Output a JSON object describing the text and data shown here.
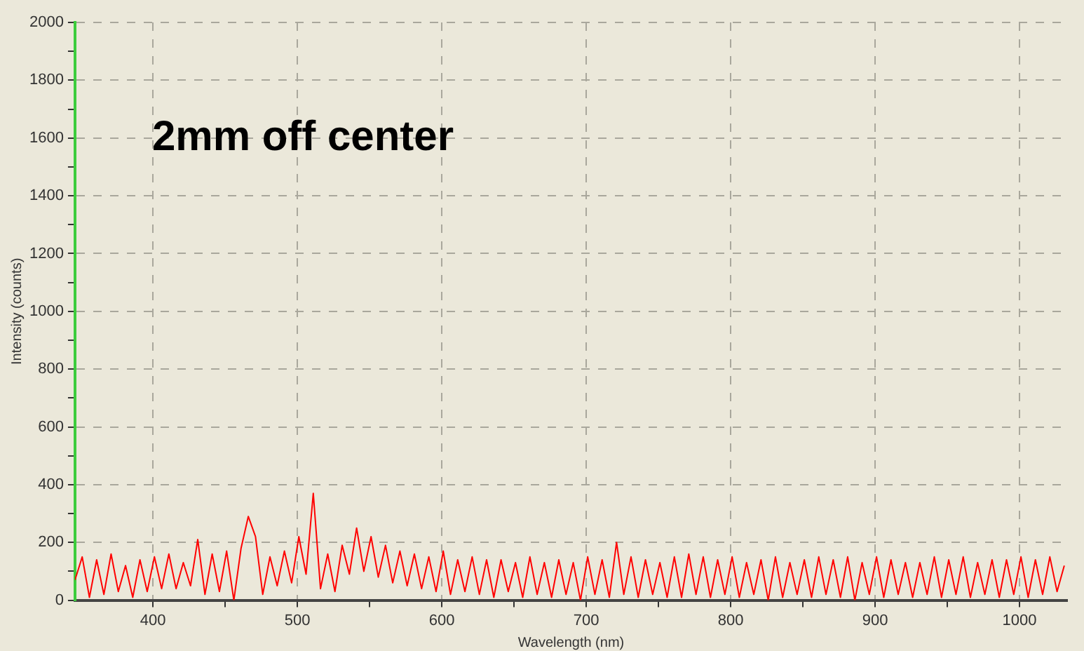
{
  "chart_data": {
    "type": "line",
    "xlabel": "Wavelength (nm)",
    "ylabel": "Intensity (counts)",
    "annotations": [
      "2mm off center"
    ],
    "xlim": [
      346,
      1033
    ],
    "ylim": [
      0,
      2000
    ],
    "xticks": [
      400,
      {
        "value": 450,
        "label": null
      },
      500,
      {
        "value": 550,
        "label": null
      },
      600,
      {
        "value": 650,
        "label": null
      },
      700,
      {
        "value": 750,
        "label": null
      },
      800,
      {
        "value": 850,
        "label": null
      },
      900,
      {
        "value": 950,
        "label": null
      },
      1000
    ],
    "yticks": [
      0,
      {
        "value": 100,
        "label": null
      },
      200,
      {
        "value": 300,
        "label": null
      },
      400,
      {
        "value": 500,
        "label": null
      },
      600,
      {
        "value": 700,
        "label": null
      },
      800,
      {
        "value": 900,
        "label": null
      },
      1000,
      {
        "value": 1100,
        "label": null
      },
      1200,
      {
        "value": 1300,
        "label": null
      },
      1400,
      {
        "value": 1500,
        "label": null
      },
      1600,
      {
        "value": 1700,
        "label": null
      },
      1800,
      {
        "value": 1900,
        "label": null
      },
      2000
    ],
    "grid": true,
    "marker": "none",
    "line_style": "solid",
    "legend": false,
    "series": [
      {
        "color": "#ff0000",
        "x": [
          346,
          351,
          356,
          361,
          366,
          371,
          376,
          381,
          386,
          391,
          396,
          401,
          406,
          411,
          416,
          421,
          426,
          431,
          436,
          441,
          446,
          451,
          456,
          461,
          466,
          471,
          476,
          481,
          486,
          491,
          496,
          501,
          506,
          511,
          516,
          521,
          526,
          531,
          536,
          541,
          546,
          551,
          556,
          561,
          566,
          571,
          576,
          581,
          586,
          591,
          596,
          601,
          606,
          611,
          616,
          621,
          626,
          631,
          636,
          641,
          646,
          651,
          656,
          661,
          666,
          671,
          676,
          681,
          686,
          691,
          696,
          701,
          706,
          711,
          716,
          721,
          726,
          731,
          736,
          741,
          746,
          751,
          756,
          761,
          766,
          771,
          776,
          781,
          786,
          791,
          796,
          801,
          806,
          811,
          816,
          821,
          826,
          831,
          836,
          841,
          846,
          851,
          856,
          861,
          866,
          871,
          876,
          881,
          886,
          891,
          896,
          901,
          906,
          911,
          916,
          921,
          926,
          931,
          936,
          941,
          946,
          951,
          956,
          961,
          966,
          971,
          976,
          981,
          986,
          991,
          996,
          1001,
          1006,
          1011,
          1016,
          1021,
          1026,
          1031
        ],
        "values": [
          70,
          150,
          10,
          140,
          20,
          160,
          30,
          120,
          10,
          140,
          30,
          150,
          40,
          160,
          40,
          130,
          50,
          210,
          20,
          160,
          30,
          170,
          0,
          180,
          290,
          220,
          20,
          150,
          50,
          170,
          60,
          220,
          90,
          370,
          40,
          160,
          30,
          190,
          90,
          250,
          100,
          220,
          80,
          190,
          60,
          170,
          50,
          160,
          40,
          150,
          30,
          170,
          20,
          140,
          30,
          150,
          20,
          140,
          10,
          140,
          30,
          130,
          10,
          150,
          20,
          130,
          10,
          140,
          20,
          130,
          0,
          150,
          20,
          140,
          10,
          200,
          20,
          150,
          10,
          140,
          20,
          130,
          10,
          150,
          10,
          160,
          20,
          150,
          10,
          140,
          20,
          150,
          10,
          130,
          20,
          140,
          0,
          150,
          10,
          130,
          20,
          140,
          10,
          150,
          20,
          140,
          10,
          150,
          0,
          130,
          20,
          150,
          10,
          140,
          20,
          130,
          10,
          130,
          20,
          150,
          10,
          140,
          20,
          150,
          10,
          130,
          20,
          140,
          10,
          140,
          20,
          150,
          10,
          140,
          20,
          150,
          30,
          120
        ]
      }
    ]
  }
}
